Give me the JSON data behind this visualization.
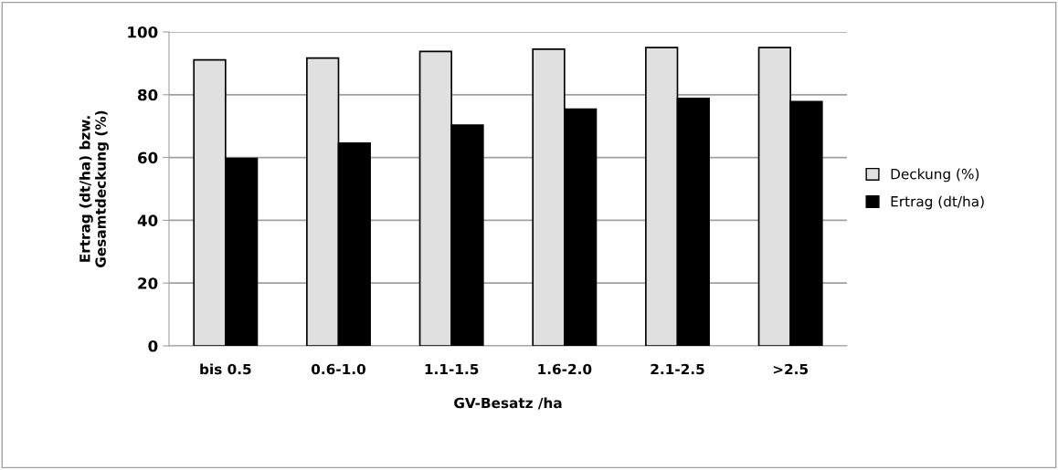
{
  "chart_data": {
    "type": "bar",
    "xlabel": "GV-Besatz /ha",
    "ylabel": "Ertrag (dt/ha) bzw.\nGesamtdeckung (%)",
    "categories": [
      "bis 0.5",
      "0.6-1.0",
      "1.1-1.5",
      "1.6-2.0",
      "2.1-2.5",
      ">2.5"
    ],
    "series": [
      {
        "name": "Deckung (%)",
        "color": "#e0e0e0",
        "values": [
          91.1,
          91.7,
          93.8,
          94.5,
          95.0,
          95.0
        ]
      },
      {
        "name": "Ertrag (dt/ha)",
        "color": "#000000",
        "values": [
          59.7,
          64.6,
          70.3,
          75.4,
          78.8,
          77.8
        ]
      }
    ],
    "ylim": [
      0,
      100
    ],
    "yticks": [
      0,
      20,
      40,
      60,
      80,
      100
    ],
    "grid": "y",
    "legend": "right"
  }
}
